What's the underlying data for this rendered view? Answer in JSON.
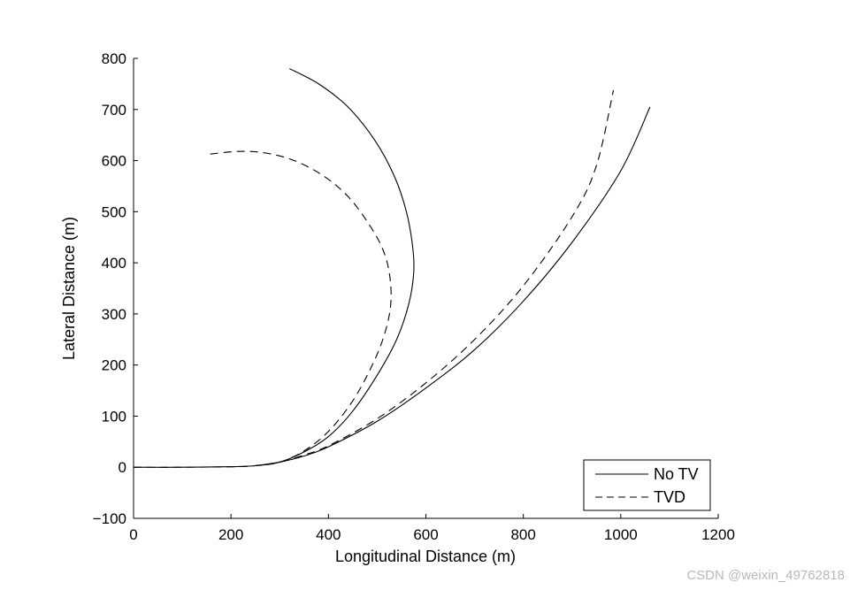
{
  "chart_data": {
    "type": "line",
    "title": "",
    "xlabel": "Longitudinal Distance (m)",
    "ylabel": "Lateral Distance (m)",
    "xlim": [
      0,
      1200
    ],
    "ylim": [
      -100,
      800
    ],
    "xticks": [
      0,
      200,
      400,
      600,
      800,
      1000,
      1200
    ],
    "xtick_labels": [
      "0",
      "200",
      "400",
      "600",
      "800",
      "1000",
      "1200"
    ],
    "yticks": [
      -100,
      0,
      100,
      200,
      300,
      400,
      500,
      600,
      700,
      800
    ],
    "ytick_labels": [
      "−100",
      "0",
      "100",
      "200",
      "300",
      "400",
      "500",
      "600",
      "700",
      "800"
    ],
    "grid": false,
    "legend_position": "bottom-right",
    "series": [
      {
        "name": "No TV",
        "style": "solid",
        "x": [
          0,
          100,
          200,
          250,
          300,
          350,
          400,
          450,
          500,
          540,
          565,
          575,
          573,
          560,
          535,
          495,
          440,
          380,
          320
        ],
        "y": [
          0,
          0,
          1,
          3,
          10,
          30,
          60,
          110,
          180,
          250,
          320,
          380,
          430,
          500,
          570,
          640,
          705,
          750,
          780
        ]
      },
      {
        "name": "TVD",
        "style": "dashed",
        "x": [
          0,
          100,
          200,
          250,
          300,
          350,
          400,
          450,
          490,
          515,
          528,
          525,
          510,
          480,
          440,
          390,
          330,
          270,
          215,
          150
        ],
        "y": [
          0,
          0,
          1,
          3,
          10,
          32,
          70,
          130,
          200,
          260,
          320,
          380,
          430,
          480,
          530,
          570,
          600,
          615,
          618,
          612
        ]
      },
      {
        "name": "No TV",
        "style": "solid",
        "x": [
          250,
          300,
          350,
          400,
          500,
          600,
          700,
          800,
          900,
          1000,
          1060
        ],
        "y": [
          3,
          10,
          22,
          40,
          90,
          155,
          230,
          325,
          440,
          580,
          705
        ]
      },
      {
        "name": "TVD",
        "style": "dashed",
        "x": [
          250,
          300,
          350,
          400,
          500,
          600,
          700,
          800,
          900,
          950,
          985
        ],
        "y": [
          3,
          10,
          24,
          42,
          95,
          165,
          250,
          355,
          490,
          590,
          738
        ]
      }
    ],
    "legend": [
      {
        "label": "No TV",
        "style": "solid"
      },
      {
        "label": "TVD",
        "style": "dashed"
      }
    ]
  },
  "watermark": "CSDN @weixin_49762818"
}
